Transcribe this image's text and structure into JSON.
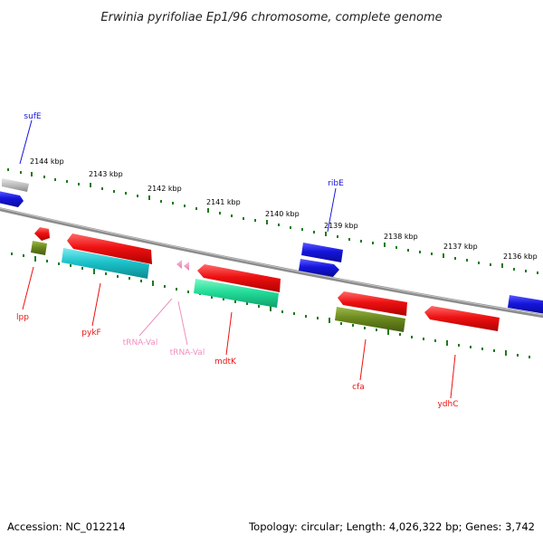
{
  "title": "Erwinia pyrifoliae Ep1/96 chromosome, complete genome",
  "footer": {
    "accession": "Accession: NC_012214",
    "summary": "Topology: circular; Length: 4,026,322 bp; Genes: 3,742"
  },
  "ticks": [
    "2144 kbp",
    "2143 kbp",
    "2142 kbp",
    "2141 kbp",
    "2140 kbp",
    "2139 kbp",
    "2138 kbp",
    "2137 kbp",
    "2136 kbp"
  ],
  "genes": [
    "sufE",
    "ribE",
    "lpp",
    "pykF",
    "tRNA-Val",
    "tRNA-Val",
    "mdtK",
    "cfa",
    "ydhC"
  ],
  "colors": {
    "backbone": "#8c8c8c",
    "tick": "#1e7a1e",
    "cds": "#ee1111",
    "cds_blue": "#1515dd",
    "rrna_cyan": "#1cc4cc",
    "misc_green": "#22dd99",
    "gene_olive": "#6b8a1e",
    "trna": "#f090c0",
    "gray": "#bdbdbd"
  }
}
